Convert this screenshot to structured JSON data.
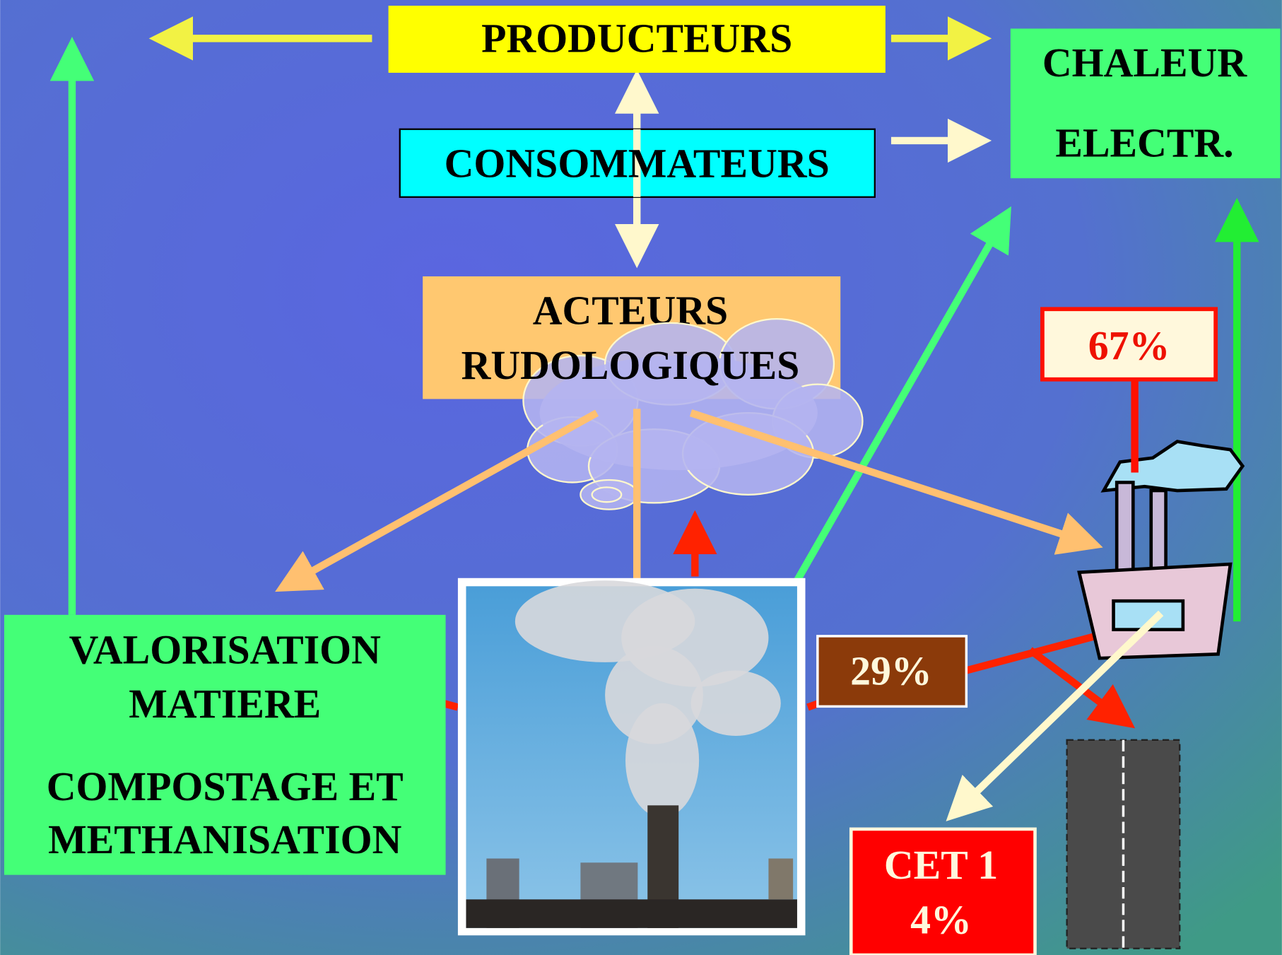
{
  "producteurs": "PRODUCTEURS",
  "output": {
    "line1": "CHALEUR",
    "line2": "ELECTR."
  },
  "consommateurs": "CONSOMMATEURS",
  "acteurs": {
    "line1": "ACTEURS",
    "line2": "RUDOLOGIQUES"
  },
  "incineration_share": "67%",
  "valorisation": {
    "line1": "VALORISATION",
    "line2": "MATIERE",
    "line3": "COMPOSTAGE ET",
    "line4": "METHANISATION"
  },
  "residue_share": "29%",
  "cet": {
    "line1": "CET 1",
    "line2": "4%"
  }
}
